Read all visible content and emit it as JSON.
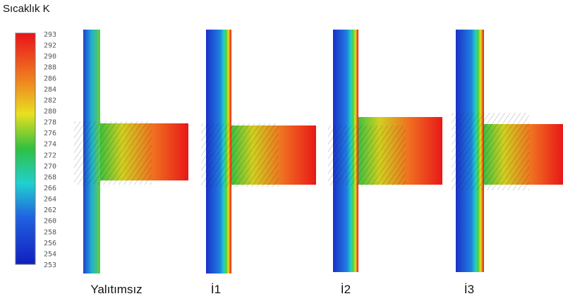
{
  "title": "Sıcaklık K",
  "colorbar": {
    "labels": [
      293,
      292,
      290,
      288,
      286,
      284,
      282,
      280,
      278,
      276,
      274,
      272,
      270,
      268,
      266,
      264,
      262,
      260,
      258,
      256,
      254,
      253
    ]
  },
  "panels": [
    {
      "label": "Yalıtımsız"
    },
    {
      "label": "İ1"
    },
    {
      "label": "İ2"
    },
    {
      "label": "İ3"
    }
  ]
}
